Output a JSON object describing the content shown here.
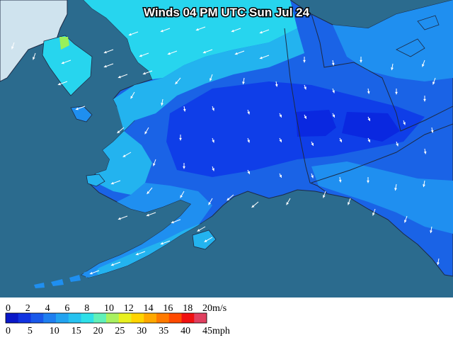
{
  "map": {
    "title": "Winds 04 PM UTC Sun Jul 24",
    "colors": {
      "ocean": "#2b6b8e",
      "land_base": "#1a63e6",
      "land_calm": "#0f3ee8",
      "land_calmest": "#0a28e0",
      "land_light": "#1f8ff0",
      "land_moderate": "#23b3ef",
      "land_breezy": "#27d5ee",
      "border": "#1d2a44"
    },
    "wind_arrow_icon": "wind-arrow-icon"
  },
  "legend": {
    "ms_unit": "m/s",
    "mph_unit": "mph",
    "ms_ticks": [
      "0",
      "2",
      "4",
      "6",
      "8",
      "10",
      "12",
      "14",
      "16",
      "18",
      "20"
    ],
    "mph_ticks": [
      "0",
      "5",
      "10",
      "15",
      "20",
      "25",
      "30",
      "35",
      "40",
      "45"
    ],
    "colors": [
      "#0a18c8",
      "#1133e0",
      "#1958ea",
      "#1f7ff0",
      "#22a3f0",
      "#26c2f0",
      "#2ee0e8",
      "#60f0b8",
      "#a8f060",
      "#e8f020",
      "#ffd400",
      "#ffa800",
      "#ff7a00",
      "#ff4a00",
      "#f01010",
      "#e04060"
    ]
  }
}
